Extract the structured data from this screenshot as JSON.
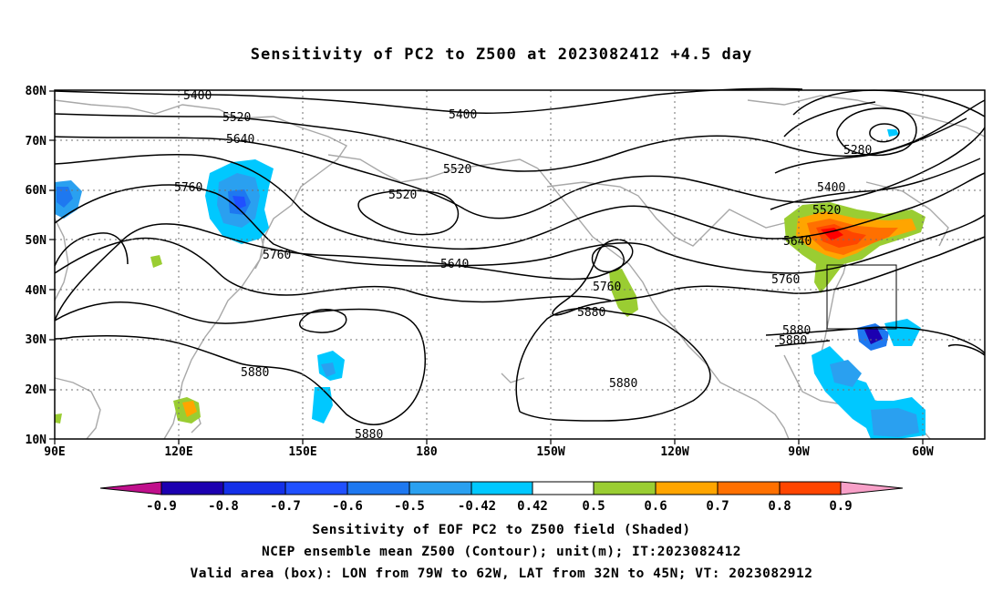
{
  "title": "Sensitivity of PC2 to Z500 at 2023082412 +4.5 day",
  "map": {
    "lat_labels": [
      "80N",
      "70N",
      "60N",
      "50N",
      "40N",
      "30N",
      "20N",
      "10N"
    ],
    "lon_labels": [
      "90E",
      "120E",
      "150E",
      "180",
      "150W",
      "120W",
      "90W",
      "60W"
    ],
    "contour_labels": [
      {
        "text": "5400"
      },
      {
        "text": "5520"
      },
      {
        "text": "5640"
      },
      {
        "text": "5760"
      },
      {
        "text": "5760"
      },
      {
        "text": "5520"
      },
      {
        "text": "5400"
      },
      {
        "text": "5520"
      },
      {
        "text": "5640"
      },
      {
        "text": "5760"
      },
      {
        "text": "5880"
      },
      {
        "text": "5880"
      },
      {
        "text": "5880"
      },
      {
        "text": "5880"
      },
      {
        "text": "5280"
      },
      {
        "text": "5400"
      },
      {
        "text": "5520"
      },
      {
        "text": "5640"
      },
      {
        "text": "5760"
      },
      {
        "text": "5880"
      },
      {
        "text": "5880"
      }
    ],
    "valid_box": {
      "lon_min": "79W",
      "lon_max": "62W",
      "lat_min": "32N",
      "lat_max": "45N"
    }
  },
  "colorbar": {
    "labels": [
      "-0.9",
      "-0.8",
      "-0.7",
      "-0.6",
      "-0.5",
      "-0.42",
      "0.42",
      "0.5",
      "0.6",
      "0.7",
      "0.8",
      "0.9"
    ],
    "colors": [
      "#1c00b0",
      "#1430e8",
      "#2050ff",
      "#1e78f0",
      "#2aa0f0",
      "#00c8ff",
      "#ffffff",
      "#9acd32",
      "#ffa500",
      "#ff7000",
      "#ff4500",
      "#ff0000"
    ],
    "end_low": "#c0108c",
    "end_high": "#f8a0c8"
  },
  "captions": [
    "Sensitivity of EOF PC2 to Z500 field (Shaded)",
    "NCEP ensemble mean Z500 (Contour); unit(m); IT:2023082412",
    "Valid area (box): LON from 79W to 62W, LAT from 32N to 45N; VT: 2023082912"
  ]
}
